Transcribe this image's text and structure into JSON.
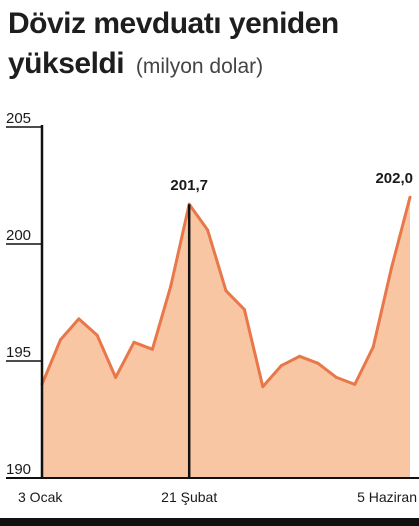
{
  "header": {
    "title_line1": "Döviz mevduatı yeniden",
    "title_line2": "yükseldi",
    "unit": "(milyon dolar)"
  },
  "colors": {
    "fill": "#f9c6a4",
    "line": "#e8774a",
    "axis": "#111111",
    "text": "#1a1a1a"
  },
  "chart_data": {
    "type": "area",
    "title": "Döviz mevduatı yeniden yükseldi",
    "ylabel": "(milyon dolar)",
    "ylim": [
      190,
      205
    ],
    "yticks": [
      205,
      200,
      195,
      190
    ],
    "x": [
      0,
      1,
      2,
      3,
      4,
      5,
      6,
      7,
      8,
      9,
      10,
      11,
      12,
      13,
      14,
      15,
      16,
      17,
      18,
      19,
      20
    ],
    "values": [
      194.0,
      195.9,
      196.8,
      196.1,
      194.3,
      195.8,
      195.5,
      198.2,
      201.7,
      200.6,
      198.0,
      197.2,
      193.9,
      194.8,
      195.2,
      194.9,
      194.3,
      194.0,
      195.6,
      199.0,
      202.0
    ],
    "xticks": [
      {
        "index": 0,
        "label": "3 Ocak"
      },
      {
        "index": 8,
        "label": "21 Şubat"
      },
      {
        "index": 20,
        "label": "5 Haziran"
      }
    ],
    "annotations": [
      {
        "index": 8,
        "label": "201,7",
        "marker_line": true
      },
      {
        "index": 20,
        "label": "202,0",
        "marker_line": false
      }
    ],
    "grid": false
  }
}
